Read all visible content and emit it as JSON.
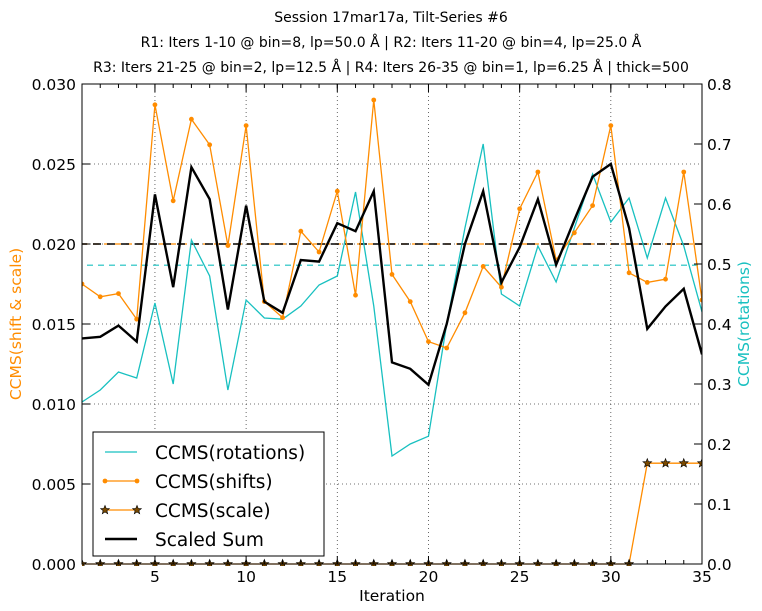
{
  "chart_data": {
    "type": "line",
    "title_lines": [
      "Session 17mar17a, Tilt-Series #6",
      "R1: Iters 1-10 @ bin=8, lp=50.0 Å | R2: Iters 11-20 @ bin=4, lp=25.0 Å",
      "R3: Iters 21-25 @ bin=2, lp=12.5 Å | R4: Iters 26-35 @ bin=1, lp=6.25 Å | thick=500"
    ],
    "xlabel": "Iteration",
    "ylabel_left": "CCMS(shift & scale)",
    "ylabel_right": "CCMS(rotations)",
    "xlim": [
      1,
      35
    ],
    "ylim_left": [
      0,
      0.03
    ],
    "ylim_right": [
      0,
      0.8
    ],
    "x_ticks": [
      "5",
      "10",
      "15",
      "20",
      "25",
      "30",
      "35"
    ],
    "y_ticks_left": [
      "0.000",
      "0.005",
      "0.010",
      "0.015",
      "0.020",
      "0.025",
      "0.030"
    ],
    "y_ticks_right": [
      "0.0",
      "0.1",
      "0.2",
      "0.3",
      "0.4",
      "0.5",
      "0.6",
      "0.7",
      "0.8"
    ],
    "colors": {
      "rotations": "#18c0c0",
      "shifts": "#ff8c00",
      "scale": "#ff8c00",
      "scale_marker_fill": "#7a4a00",
      "sum": "#000000",
      "grid": "#444444"
    },
    "x": [
      1,
      2,
      3,
      4,
      5,
      6,
      7,
      8,
      9,
      10,
      11,
      12,
      13,
      14,
      15,
      16,
      17,
      18,
      19,
      20,
      21,
      22,
      23,
      24,
      25,
      26,
      27,
      28,
      29,
      30,
      31,
      32,
      33,
      34,
      35
    ],
    "series": [
      {
        "name": "CCMS(rotations)",
        "axis": "right",
        "style": "line",
        "values": [
          0.27,
          0.29,
          0.32,
          0.31,
          0.435,
          0.3,
          0.54,
          0.48,
          0.29,
          0.44,
          0.41,
          0.408,
          0.43,
          0.465,
          0.48,
          0.62,
          0.43,
          0.18,
          0.2,
          0.213,
          0.4,
          0.56,
          0.7,
          0.45,
          0.43,
          0.53,
          0.47,
          0.56,
          0.65,
          0.57,
          0.61,
          0.51,
          0.61,
          0.53,
          0.42
        ]
      },
      {
        "name": "CCMS(shifts)",
        "axis": "left",
        "style": "line-dots",
        "values": [
          0.0175,
          0.0167,
          0.0169,
          0.0153,
          0.0287,
          0.0227,
          0.0278,
          0.0262,
          0.0199,
          0.0274,
          0.0164,
          0.0154,
          0.0208,
          0.0195,
          0.0233,
          0.0168,
          0.029,
          0.0181,
          0.0164,
          0.0139,
          0.0135,
          0.0157,
          0.0186,
          0.0173,
          0.0222,
          0.0245,
          0.019,
          0.0207,
          0.0224,
          0.0274,
          0.0182,
          0.0176,
          0.0178,
          0.0245,
          0.0165
        ]
      },
      {
        "name": "CCMS(scale)",
        "axis": "left",
        "style": "line-stars",
        "values": [
          0,
          0,
          0,
          0,
          0,
          0,
          0,
          0,
          0,
          0,
          0,
          0,
          0,
          0,
          0,
          0,
          0,
          0,
          0,
          0,
          0,
          0,
          0,
          0,
          0,
          0,
          0,
          0,
          0,
          0,
          0,
          0.0063,
          0.0063,
          0.0063,
          0.0063
        ]
      },
      {
        "name": "Scaled Sum",
        "axis": "left",
        "style": "thick-line",
        "values": [
          0.0141,
          0.0142,
          0.0149,
          0.0139,
          0.0231,
          0.0173,
          0.0248,
          0.0228,
          0.0159,
          0.0224,
          0.0164,
          0.0157,
          0.019,
          0.0189,
          0.0213,
          0.0208,
          0.0233,
          0.0126,
          0.0122,
          0.0112,
          0.015,
          0.02,
          0.0233,
          0.0176,
          0.0198,
          0.0228,
          0.0187,
          0.0215,
          0.0242,
          0.025,
          0.021,
          0.0147,
          0.0161,
          0.0172,
          0.0131
        ]
      }
    ],
    "reference_lines": [
      {
        "axis": "left",
        "value": 0.02,
        "color": "#ff8c00",
        "style": "dashed"
      },
      {
        "axis": "left",
        "value": 0.02,
        "color": "#000000",
        "style": "dashed"
      },
      {
        "axis": "right",
        "value": 0.498,
        "color": "#18c0c0",
        "style": "dashed"
      }
    ],
    "legend": {
      "position": "lower-left",
      "entries": [
        "CCMS(rotations)",
        "CCMS(shifts)",
        "CCMS(scale)",
        "Scaled Sum"
      ]
    }
  }
}
